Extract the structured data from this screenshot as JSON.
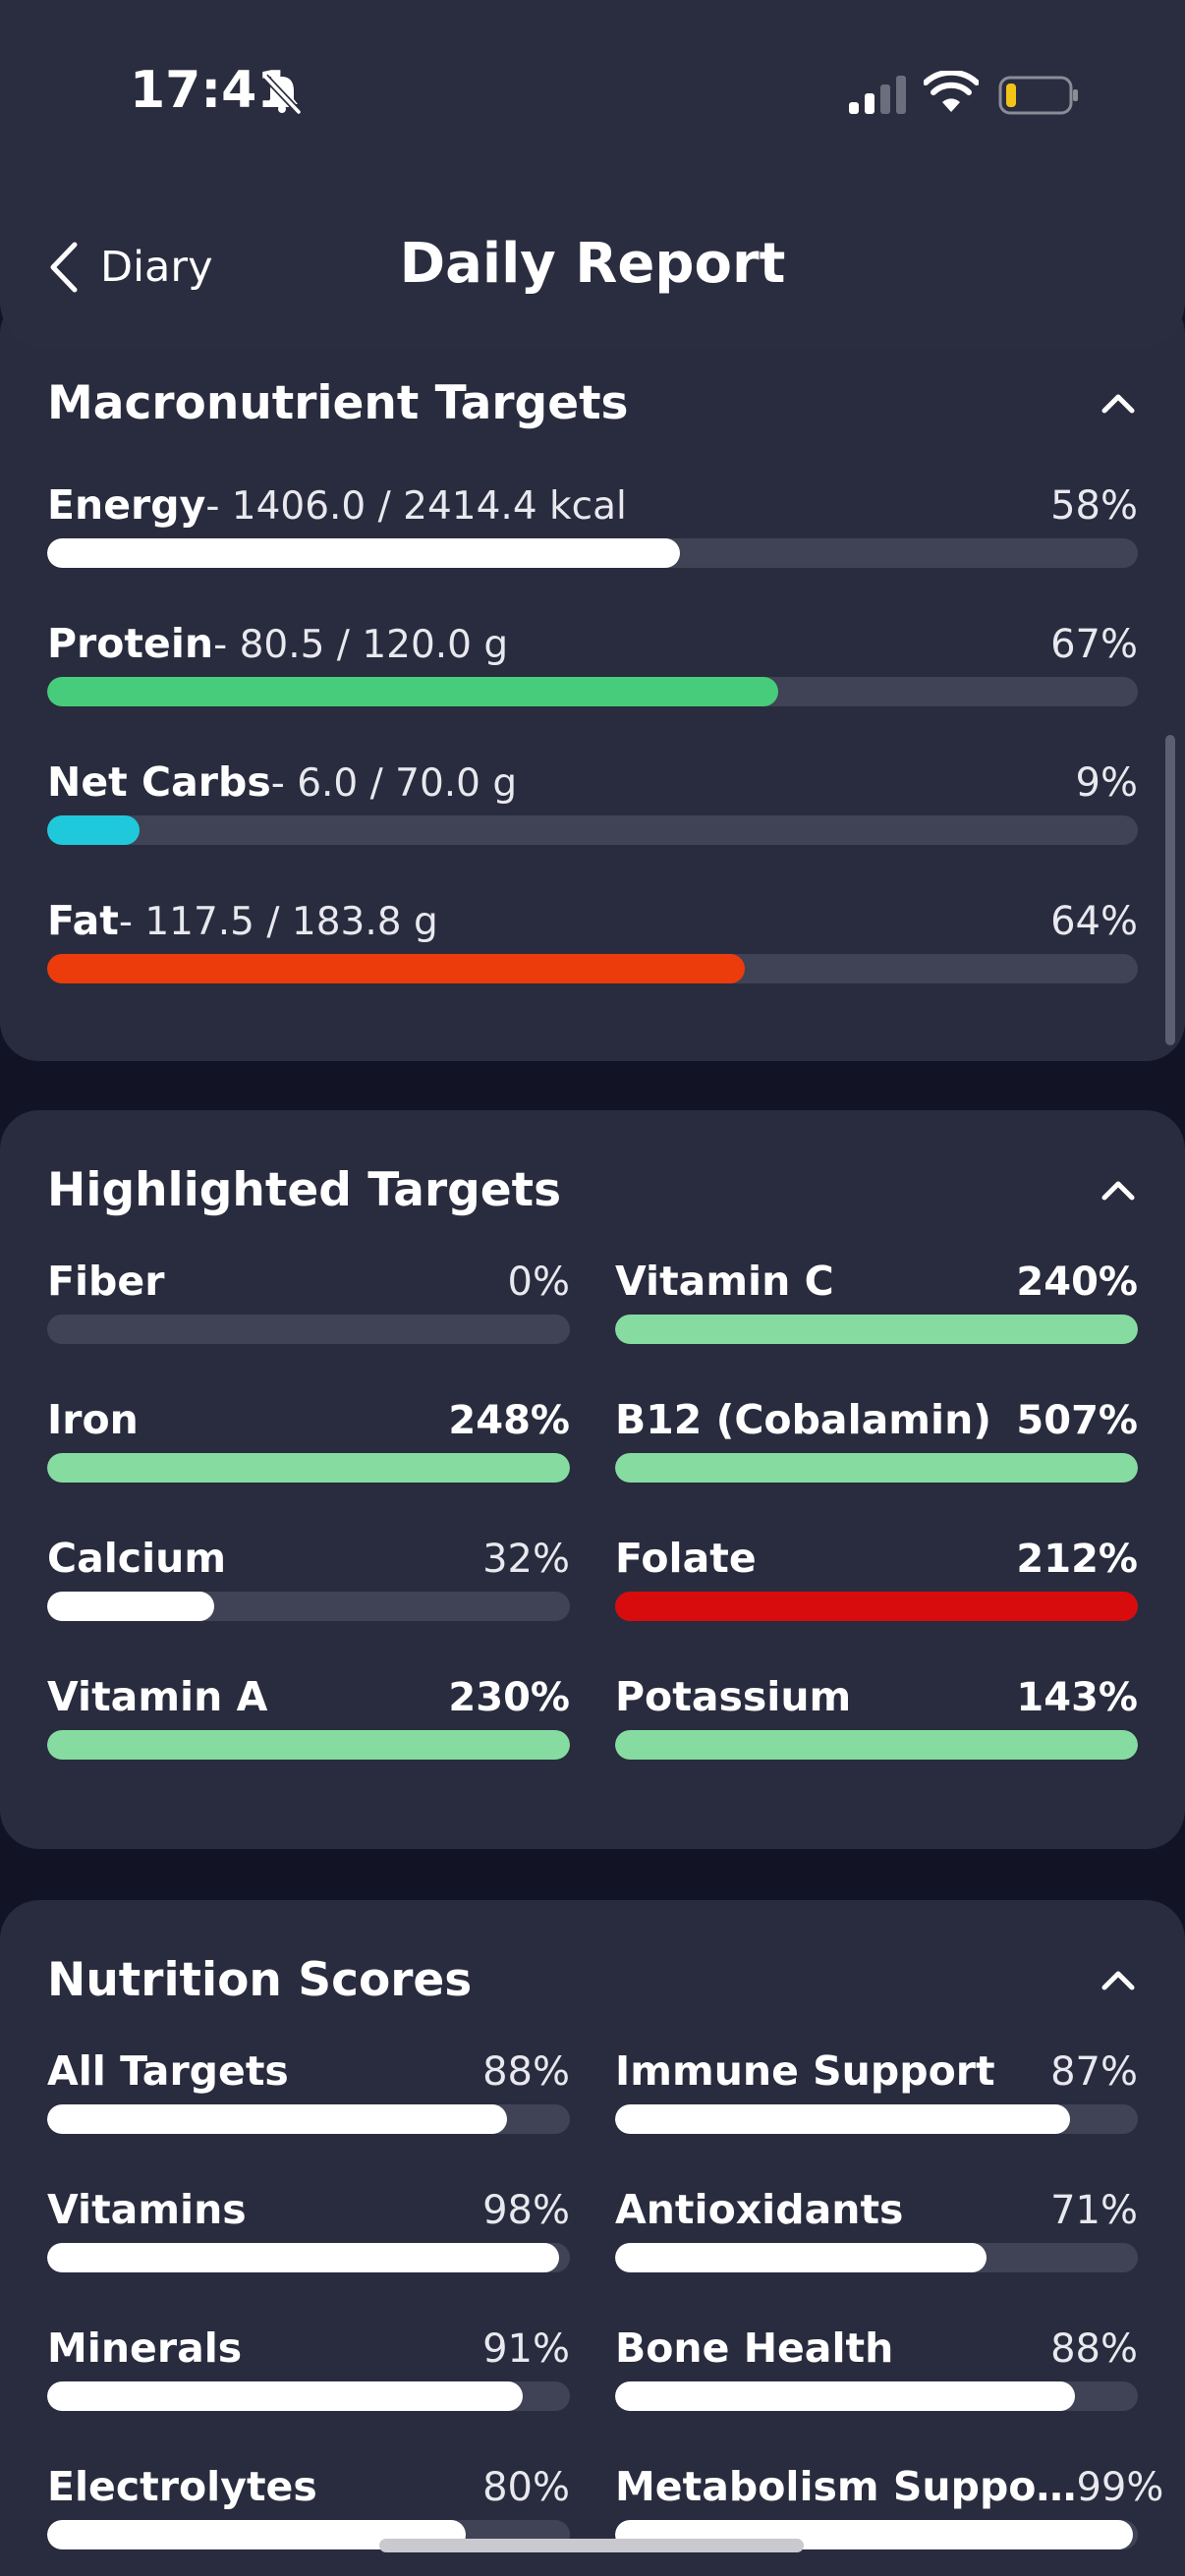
{
  "status_bar": {
    "time": "17:41",
    "icons": [
      "bell-slash-icon",
      "cellular-signal-icon",
      "wifi-icon",
      "battery-low-icon"
    ],
    "battery_color": "#f2c318"
  },
  "nav": {
    "back_label": "Diary",
    "title": "Daily Report"
  },
  "colors": {
    "background": "#121426",
    "card": "#292c3e",
    "track": "#404355",
    "white": "#ffffff",
    "protein_green": "#46cc7a",
    "carbs_cyan": "#20c8dc",
    "fat_orange": "#ec3c0c",
    "good_green": "#86dca0",
    "alert_red": "#d80c0c"
  },
  "macronutrients": {
    "title": "Macronutrient Targets",
    "items": [
      {
        "name": "Energy",
        "detail": "- 1406.0 / 2414.4 kcal",
        "percent_label": "58%",
        "fill_fraction": 0.58,
        "color": "#ffffff"
      },
      {
        "name": "Protein",
        "detail": "- 80.5 / 120.0 g",
        "percent_label": "67%",
        "fill_fraction": 0.67,
        "color": "#46cc7a"
      },
      {
        "name": "Net Carbs",
        "detail": "- 6.0 / 70.0 g",
        "percent_label": "9%",
        "fill_fraction": 0.085,
        "color": "#20c8dc"
      },
      {
        "name": "Fat",
        "detail": "- 117.5 / 183.8 g",
        "percent_label": "64%",
        "fill_fraction": 0.64,
        "color": "#ec3c0c"
      }
    ]
  },
  "highlighted": {
    "title": "Highlighted Targets",
    "items": [
      {
        "name": "Fiber",
        "percent_label": "0%",
        "fill_fraction": 0.0,
        "color": "#ffffff",
        "strong": false
      },
      {
        "name": "Vitamin C",
        "percent_label": "240%",
        "fill_fraction": 1.0,
        "color": "#86dca0",
        "strong": true
      },
      {
        "name": "Iron",
        "percent_label": "248%",
        "fill_fraction": 1.0,
        "color": "#86dca0",
        "strong": true
      },
      {
        "name": "B12 (Cobalamin)",
        "percent_label": "507%",
        "fill_fraction": 1.0,
        "color": "#86dca0",
        "strong": true
      },
      {
        "name": "Calcium",
        "percent_label": "32%",
        "fill_fraction": 0.32,
        "color": "#ffffff",
        "strong": false
      },
      {
        "name": "Folate",
        "percent_label": "212%",
        "fill_fraction": 1.0,
        "color": "#d80c0c",
        "strong": true
      },
      {
        "name": "Vitamin A",
        "percent_label": "230%",
        "fill_fraction": 1.0,
        "color": "#86dca0",
        "strong": true
      },
      {
        "name": "Potassium",
        "percent_label": "143%",
        "fill_fraction": 1.0,
        "color": "#86dca0",
        "strong": true
      }
    ]
  },
  "scores": {
    "title": "Nutrition Scores",
    "items": [
      {
        "name": "All Targets",
        "percent_label": "88%",
        "fill_fraction": 0.88,
        "color": "#ffffff",
        "strong": false
      },
      {
        "name": "Immune Support",
        "percent_label": "87%",
        "fill_fraction": 0.87,
        "color": "#ffffff",
        "strong": false
      },
      {
        "name": "Vitamins",
        "percent_label": "98%",
        "fill_fraction": 0.98,
        "color": "#ffffff",
        "strong": false
      },
      {
        "name": "Antioxidants",
        "percent_label": "71%",
        "fill_fraction": 0.71,
        "color": "#ffffff",
        "strong": false
      },
      {
        "name": "Minerals",
        "percent_label": "91%",
        "fill_fraction": 0.91,
        "color": "#ffffff",
        "strong": false
      },
      {
        "name": "Bone Health",
        "percent_label": "88%",
        "fill_fraction": 0.88,
        "color": "#ffffff",
        "strong": false
      },
      {
        "name": "Electrolytes",
        "percent_label": "80%",
        "fill_fraction": 0.8,
        "color": "#ffffff",
        "strong": false
      },
      {
        "name": "Metabolism Suppo…",
        "percent_label": "99%",
        "fill_fraction": 0.99,
        "color": "#ffffff",
        "strong": false
      }
    ]
  }
}
